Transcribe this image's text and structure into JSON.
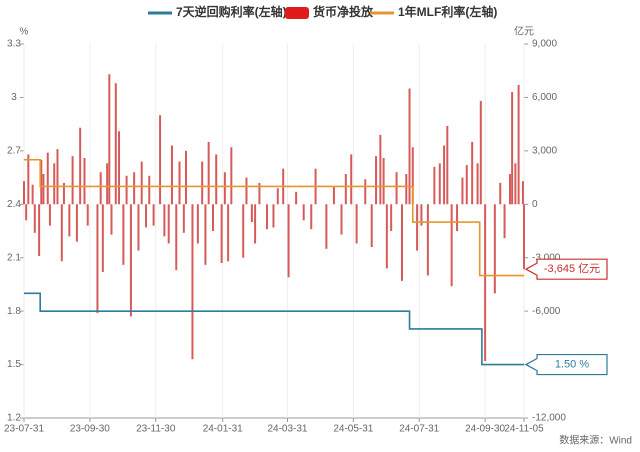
{
  "chart_data": {
    "type": "combo",
    "left_unit": "%",
    "right_unit": "亿元",
    "source": "数据来源：Wind",
    "xlim": [
      "23-07-31",
      "24-11-05"
    ],
    "xticks": [
      "23-07-31",
      "23-09-30",
      "23-11-30",
      "24-01-31",
      "24-03-31",
      "24-05-31",
      "24-07-31",
      "24-09-30",
      "24-11-05"
    ],
    "ylim": [
      1.2,
      3.3
    ],
    "yticks": [
      1.2,
      1.5,
      1.8,
      2.1,
      2.4,
      2.7,
      3,
      3.3
    ],
    "y2lim": [
      -12000,
      9000
    ],
    "y2ticks": [
      {
        "value": -12000,
        "label": "-12,000"
      },
      {
        "value": -9000,
        "label": "-9,000"
      },
      {
        "value": -6000,
        "label": "-6,000"
      },
      {
        "value": -3000,
        "label": "-3,000"
      },
      0,
      {
        "value": 3000,
        "label": "3,000"
      },
      {
        "value": 6000,
        "label": "6,000"
      },
      {
        "value": 9000,
        "label": "9,000"
      }
    ],
    "series": [
      {
        "name": "7天逆回购利率(左轴)",
        "type": "step",
        "color": "#2e7b9a",
        "x": [
          "23-07-31",
          "23-08-15",
          "24-07-22",
          "24-09-27",
          "24-11-05"
        ],
        "values": [
          1.9,
          1.8,
          1.7,
          1.5,
          1.5
        ]
      },
      {
        "name": "货币净投放",
        "type": "bar",
        "axis": "y2",
        "color": "#d65a5a",
        "x": [
          "23-07-31",
          "23-08-02",
          "23-08-04",
          "23-08-08",
          "23-08-10",
          "23-08-14",
          "23-08-16",
          "23-08-18",
          "23-08-22",
          "23-08-24",
          "23-08-28",
          "23-08-31",
          "23-09-04",
          "23-09-06",
          "23-09-11",
          "23-09-14",
          "23-09-18",
          "23-09-21",
          "23-09-25",
          "23-09-28",
          "23-10-07",
          "23-10-10",
          "23-10-12",
          "23-10-16",
          "23-10-18",
          "23-10-20",
          "23-10-24",
          "23-10-27",
          "23-10-31",
          "23-11-03",
          "23-11-07",
          "23-11-10",
          "23-11-14",
          "23-11-17",
          "23-11-21",
          "23-11-24",
          "23-11-28",
          "23-12-04",
          "23-12-08",
          "23-12-12",
          "23-12-15",
          "23-12-19",
          "23-12-22",
          "23-12-26",
          "23-12-28",
          "24-01-03",
          "24-01-08",
          "24-01-12",
          "24-01-15",
          "24-01-18",
          "24-01-22",
          "24-01-25",
          "24-01-30",
          "24-02-02",
          "24-02-05",
          "24-02-08",
          "24-02-19",
          "24-02-22",
          "24-02-27",
          "24-03-01",
          "24-03-05",
          "24-03-12",
          "24-03-18",
          "24-03-22",
          "24-03-27",
          "24-04-01",
          "24-04-08",
          "24-04-15",
          "24-04-22",
          "24-04-26",
          "24-05-06",
          "24-05-13",
          "24-05-20",
          "24-05-24",
          "24-05-29",
          "24-06-03",
          "24-06-11",
          "24-06-17",
          "24-06-21",
          "24-06-25",
          "24-06-28",
          "24-07-01",
          "24-07-05",
          "24-07-10",
          "24-07-15",
          "24-07-19",
          "24-07-22",
          "24-07-25",
          "24-07-29",
          "24-08-02",
          "24-08-08",
          "24-08-14",
          "24-08-19",
          "24-08-23",
          "24-08-26",
          "24-08-30",
          "24-09-04",
          "24-09-09",
          "24-09-13",
          "24-09-18",
          "24-09-23",
          "24-09-26",
          "24-09-30",
          "24-10-09",
          "24-10-14",
          "24-10-18",
          "24-10-23",
          "24-10-25",
          "24-10-28",
          "24-10-31",
          "24-11-04",
          "24-11-05"
        ],
        "values": [
          1300,
          -900,
          2800,
          1100,
          -1600,
          -2900,
          2500,
          1700,
          2900,
          -1200,
          2300,
          3100,
          -3200,
          1200,
          -1800,
          2700,
          -2100,
          4300,
          2600,
          -1200,
          -6100,
          1800,
          -3800,
          2300,
          7300,
          -1700,
          6800,
          4100,
          -3400,
          1600,
          -6300,
          1800,
          -2600,
          2400,
          -1300,
          1600,
          -1200,
          5000,
          -1800,
          -2200,
          3300,
          -3700,
          2400,
          -1600,
          3000,
          -8700,
          -2200,
          2400,
          -3400,
          3500,
          -1500,
          2800,
          -3300,
          1800,
          -3200,
          3200,
          -3000,
          1500,
          -1000,
          -2200,
          1200,
          -1400,
          -1300,
          900,
          2000,
          -4100,
          700,
          -900,
          -1400,
          2000,
          -2500,
          1000,
          -1700,
          1700,
          2800,
          -2200,
          1400,
          -2400,
          2700,
          3900,
          2600,
          -3600,
          -1500,
          1800,
          -4300,
          1700,
          6500,
          3200,
          -2600,
          -1200,
          -4000,
          2100,
          2300,
          3300,
          4400,
          -4600,
          -1500,
          1500,
          2200,
          3500,
          2300,
          5800,
          -8800,
          -5000,
          1200,
          -1900,
          1700,
          6300,
          2300,
          6700,
          1300,
          -3645
        ]
      },
      {
        "name": "1年MLF利率(左轴)",
        "type": "step",
        "color": "#e8952d",
        "x": [
          "23-07-31",
          "23-08-15",
          "24-07-25",
          "24-09-25",
          "24-11-05"
        ],
        "values": [
          2.65,
          2.5,
          2.3,
          2.0,
          2.0
        ]
      }
    ],
    "callouts": [
      {
        "label": "-3,645 亿元",
        "value": -3645,
        "axis": "y2",
        "color": "#c9302c"
      },
      {
        "label": "1.50 %",
        "value": 1.5,
        "axis": "y",
        "color": "#2e7b9a"
      }
    ]
  }
}
